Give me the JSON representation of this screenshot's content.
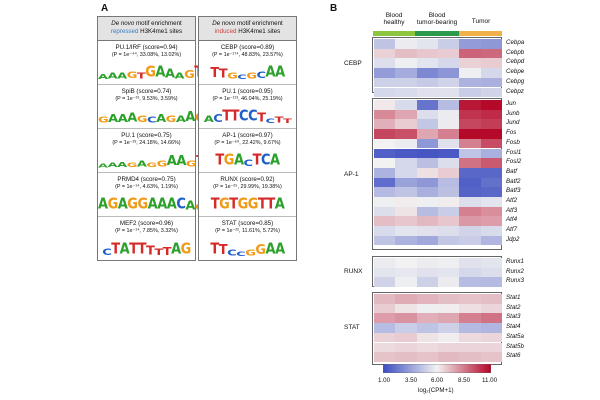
{
  "panels": {
    "a": "A",
    "b": "B"
  },
  "motif_columns": [
    {
      "header_italic": "De novo",
      "header_rest": " motif enrichment",
      "header_colored": "repressed",
      "header_suffix": " H3K4me1 sites",
      "accent": "#3a7dc0",
      "motifs": [
        {
          "name": "PU.1/IRF (score=0.94)",
          "stats": "(P = 1e⁻⁴⁴, 33.08%, 13.02%)",
          "logo": "AAAGTGAAAGT"
        },
        {
          "name": "SpiB (score=0.74)",
          "stats": "(P = 1e⁻³¹, 9.53%, 3.59%)",
          "logo": "GAAAGCAGAAGT"
        },
        {
          "name": "PU.1 (score=0.75)",
          "stats": "(P = 1e⁻²³, 24.18%, 14.66%)",
          "logo": "AAAGAGGAAGT"
        },
        {
          "name": "PRMD4 (score=0.75)",
          "stats": "(P = 1e⁻¹⁴, 4.63%, 1.19%)",
          "logo": "AGAGGAAACAGT"
        },
        {
          "name": "MEF2 (score=0.96)",
          "stats": "(P = 1e⁻¹⁴, 7.85%, 3.32%)",
          "logo": "CTATTTTTAG"
        }
      ]
    },
    {
      "header_italic": "De novo",
      "header_rest": " motif enrichment",
      "header_colored": "induced",
      "header_suffix": " H3K4me1 sites",
      "accent": "#d23d3d",
      "motifs": [
        {
          "name": "CEBP (score=0.89)",
          "stats": "(P = 1e⁻¹⁷⁴, 48.83%, 23.57%)",
          "logo": "TTGCGCAA"
        },
        {
          "name": "PU.1 (score=0.95)",
          "stats": "(P = 1e⁻¹¹³, 46.04%, 25.19%)",
          "logo": "ACTTCCTCTT"
        },
        {
          "name": "AP-1 (score=0.97)",
          "stats": "(P = 1e⁻⁶⁹, 22.42%, 9.67%)",
          "logo": "TGACTCA"
        },
        {
          "name": "RUNX (score=0.92)",
          "stats": "(P = 1e⁻²⁵, 29.99%, 19.38%)",
          "logo": "TGTGGTTA"
        },
        {
          "name": "STAT (score=0.85)",
          "stats": "(P = 1e⁻²², 11.61%, 5.72%)",
          "logo": "TTCCGGAA"
        }
      ]
    }
  ],
  "heatmap": {
    "column_groups": [
      {
        "label": "Blood\nhealthy",
        "color": "#8cc63f",
        "cols": 2
      },
      {
        "label": "Blood\ntumor-bearing",
        "color": "#2b9a4a",
        "cols": 2
      },
      {
        "label": "Tumor",
        "color": "#f0b04a",
        "cols": 2
      }
    ],
    "families": [
      {
        "name": "CEBP",
        "genes": [
          {
            "gene": "Cebpa",
            "values": [
              4.6,
              5.8,
              5.6,
              4.9,
              3.4,
              3.3
            ]
          },
          {
            "gene": "Cebpb",
            "values": [
              6.7,
              7.1,
              6.9,
              6.8,
              9.0,
              8.9
            ]
          },
          {
            "gene": "Cebpd",
            "values": [
              5.4,
              5.9,
              5.6,
              5.2,
              6.7,
              6.8
            ]
          },
          {
            "gene": "Cebpe",
            "values": [
              3.4,
              3.9,
              2.8,
              3.2,
              5.9,
              5.2
            ]
          },
          {
            "gene": "Cebpg",
            "values": [
              5.0,
              5.0,
              4.8,
              5.1,
              4.1,
              4.0
            ]
          },
          {
            "gene": "Cebpz",
            "values": [
              5.2,
              5.3,
              5.5,
              5.5,
              4.9,
              5.1
            ]
          }
        ]
      },
      {
        "name": "AP-1",
        "genes": [
          {
            "gene": "Jun",
            "values": [
              6.2,
              5.3,
              2.2,
              4.4,
              10.6,
              10.9
            ]
          },
          {
            "gene": "Junb",
            "values": [
              8.2,
              7.6,
              5.4,
              5.8,
              10.0,
              10.2
            ]
          },
          {
            "gene": "Jund",
            "values": [
              7.4,
              6.8,
              4.7,
              5.8,
              9.6,
              9.8
            ]
          },
          {
            "gene": "Fos",
            "values": [
              9.6,
              9.4,
              7.6,
              8.4,
              10.9,
              10.9
            ]
          },
          {
            "gene": "Fosb",
            "values": [
              6.0,
              5.8,
              3.3,
              5.5,
              8.4,
              9.5
            ]
          },
          {
            "gene": "Fosl1",
            "values": [
              1.6,
              1.4,
              1.3,
              1.4,
              4.6,
              4.0
            ]
          },
          {
            "gene": "Fosl2",
            "values": [
              6.0,
              5.2,
              4.5,
              5.4,
              8.7,
              9.2
            ]
          },
          {
            "gene": "Batf",
            "values": [
              4.1,
              5.2,
              6.4,
              6.8,
              1.8,
              1.8
            ]
          },
          {
            "gene": "Batf2",
            "values": [
              2.0,
              3.6,
              3.3,
              4.4,
              1.6,
              2.1
            ]
          },
          {
            "gene": "Batf3",
            "values": [
              4.3,
              4.6,
              4.0,
              4.5,
              1.7,
              1.8
            ]
          },
          {
            "gene": "Atf2",
            "values": [
              5.9,
              6.1,
              5.9,
              6.1,
              5.4,
              5.6
            ]
          },
          {
            "gene": "Atf3",
            "values": [
              5.4,
              6.3,
              4.4,
              4.9,
              8.4,
              8.1
            ]
          },
          {
            "gene": "Atf4",
            "values": [
              7.1,
              6.9,
              7.2,
              6.9,
              7.9,
              7.8
            ]
          },
          {
            "gene": "Atf7",
            "values": [
              5.3,
              5.6,
              5.5,
              5.4,
              5.1,
              5.3
            ]
          },
          {
            "gene": "Jdp2",
            "values": [
              4.6,
              4.1,
              3.8,
              4.7,
              4.9,
              4.2
            ]
          }
        ]
      },
      {
        "name": "RUNX",
        "genes": [
          {
            "gene": "Runx1",
            "values": [
              5.8,
              6.0,
              5.8,
              5.9,
              5.5,
              5.6
            ]
          },
          {
            "gene": "Runx2",
            "values": [
              5.6,
              5.7,
              5.5,
              5.6,
              5.2,
              5.4
            ]
          },
          {
            "gene": "Runx3",
            "values": [
              5.1,
              5.9,
              5.0,
              5.8,
              4.4,
              4.3
            ]
          }
        ]
      },
      {
        "name": "STAT",
        "genes": [
          {
            "gene": "Stat1",
            "values": [
              7.2,
              7.5,
              7.3,
              7.1,
              7.0,
              7.1
            ]
          },
          {
            "gene": "Stat2",
            "values": [
              6.8,
              6.3,
              5.9,
              6.1,
              6.4,
              6.6
            ]
          },
          {
            "gene": "Stat3",
            "values": [
              7.8,
              8.0,
              7.4,
              7.6,
              8.4,
              8.7
            ]
          },
          {
            "gene": "Stat4",
            "values": [
              4.4,
              4.9,
              4.6,
              5.0,
              4.3,
              4.2
            ]
          },
          {
            "gene": "Stat5a",
            "values": [
              6.7,
              6.8,
              6.3,
              6.1,
              6.5,
              6.6
            ]
          },
          {
            "gene": "Stat5b",
            "values": [
              6.5,
              6.6,
              6.5,
              6.6,
              6.6,
              6.6
            ]
          },
          {
            "gene": "Stat6",
            "values": [
              7.0,
              7.1,
              7.0,
              7.2,
              7.1,
              7.0
            ]
          }
        ]
      }
    ],
    "colorbar": {
      "min": 1.0,
      "max": 11.0,
      "ticks": [
        "1.00",
        "3.50",
        "6.00",
        "8.50",
        "11.00"
      ],
      "label": "log₂(CPM+1)",
      "low_color": "#3b4cc0",
      "mid_color": "#f2f2f2",
      "high_color": "#b40426"
    }
  }
}
